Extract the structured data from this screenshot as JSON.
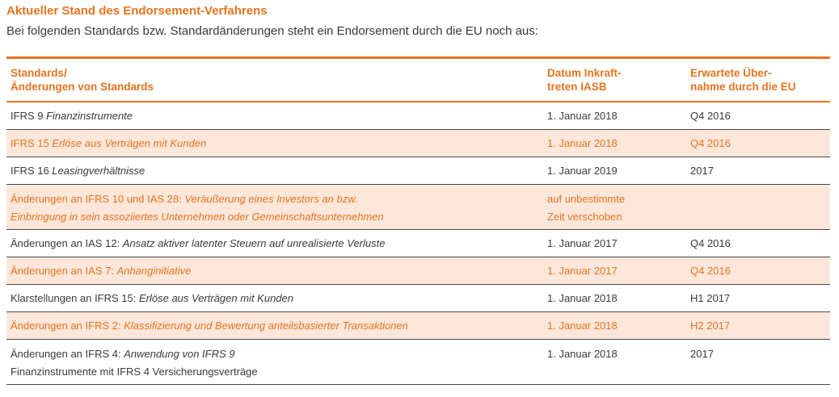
{
  "header": {
    "title": "Aktueller Stand des Endorsement-Verfahrens",
    "subtitle": "Bei folgenden Standards bzw. Standardänderungen steht ein Endorsement durch die EU noch aus:"
  },
  "table": {
    "columns": {
      "standards_line1": "Standards/",
      "standards_line2": "Änderungen von Standards",
      "date_line1": "Datum Inkraft-",
      "date_line2": "treten IASB",
      "eu_line1": "Erwartete Über-",
      "eu_line2": "nahme durch die EU"
    },
    "rows": [
      {
        "prefix": "IFRS 9 ",
        "italic": "Finanzinstrumente",
        "date": "1. Januar 2018",
        "eu": "Q4 2016"
      },
      {
        "prefix": "IFRS 15 ",
        "italic": "Erlöse aus Verträgen mit Kunden",
        "date": "1. Januar 2018",
        "eu": "Q4 2016"
      },
      {
        "prefix": "IFRS 16 ",
        "italic": "Leasingverhältnisse",
        "date": "1. Januar 2019",
        "eu": "2017"
      },
      {
        "prefix": "Änderungen an IFRS 10 und IAS 28: ",
        "italic": "Veräußerung eines Investors an bzw.",
        "line2_italic": "Einbringung in sein assoziiertes Unternehmen oder Gemeinschaftsunternehmen",
        "date": "auf unbestimmte",
        "date2": "Zeit verschoben",
        "eu": ""
      },
      {
        "prefix": "Änderungen an IAS 12: ",
        "italic": "Ansatz aktiver latenter Steuern auf unrealisierte Verluste",
        "date": "1. Januar 2017",
        "eu": "Q4 2016"
      },
      {
        "prefix": "Änderungen an IAS 7: ",
        "italic": "Anhanginitiative",
        "date": "1. Januar 2017",
        "eu": "Q4 2016"
      },
      {
        "prefix": "Klarstellungen an IFRS 15: ",
        "italic": "Erlöse aus Verträgen mit Kunden",
        "date": "1. Januar 2018",
        "eu": "H1 2017"
      },
      {
        "prefix": "Änderungen an IFRS 2: ",
        "italic": "Klassifizierung und Bewertung anteilsbasierter Transaktionen",
        "date": "1. Januar 2018",
        "eu": "H2 2017"
      },
      {
        "prefix": "Änderungen an IFRS 4: ",
        "italic": "Anwendung von IFRS 9",
        "line2_plain": "Finanzinstrumente mit IFRS 4 Versicherungsverträge",
        "date": "1. Januar 2018",
        "eu": "2017"
      }
    ]
  },
  "colors": {
    "accent": "#e8731f",
    "tint": "#fce7da",
    "text": "#3a3a3a"
  }
}
